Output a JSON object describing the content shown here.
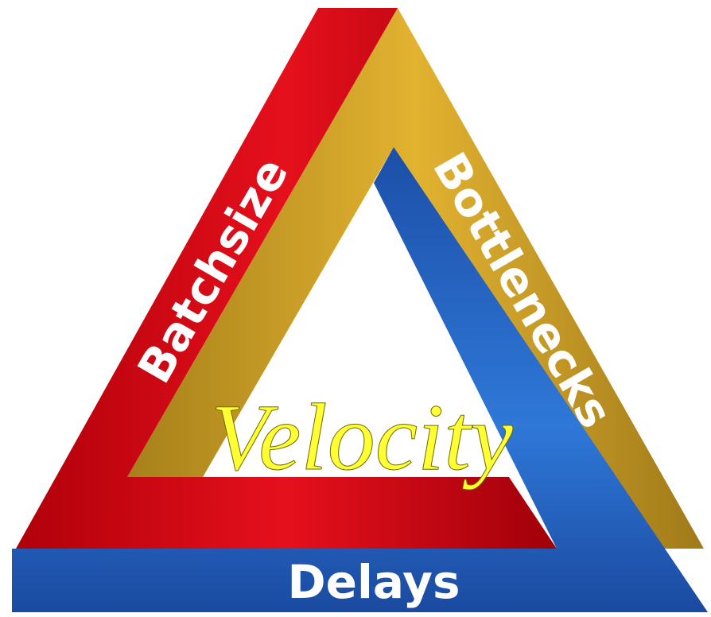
{
  "labels": {
    "left": "Batchsize",
    "right": "Bottlenecks",
    "bottom": "Delays",
    "center": "Velocity"
  }
}
